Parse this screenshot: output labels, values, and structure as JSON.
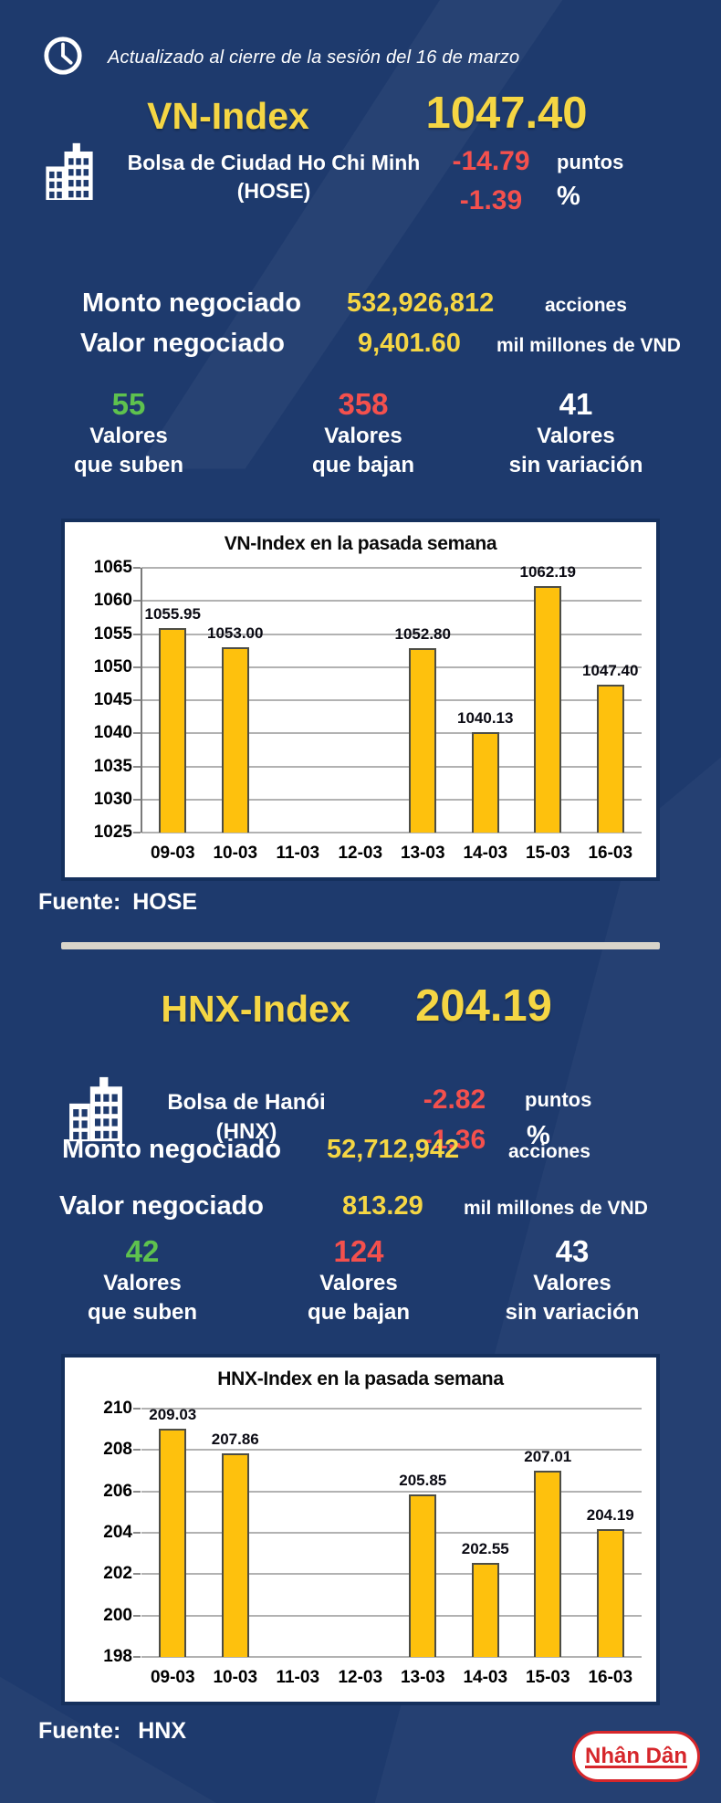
{
  "theme": {
    "background_navy": "#1e3a6d",
    "accent_yellow": "#f5d644",
    "bar_gold": "#fec10d",
    "negative_red": "#f4504d",
    "positive_green": "#5ec24e",
    "white": "#ffffff",
    "divider_gray": "#d8d4ca",
    "brand_red": "#d6262b"
  },
  "header": {
    "updated_text": "Actualizado al cierre de la sesión del 16 de marzo"
  },
  "sections": [
    {
      "index_name": "VN-Index",
      "index_value": "1047.40",
      "exchange_line1": "Bolsa de Ciudad Ho Chi Minh",
      "exchange_line2": "(HOSE)",
      "change_points": "-14.79",
      "change_points_unit": "puntos",
      "change_percent": "-1.39",
      "change_percent_unit": "%",
      "rows": [
        {
          "label": "Monto negociado",
          "value": "532,926,812",
          "unit": "acciones"
        },
        {
          "label": "Valor negociado",
          "value": "9,401.60",
          "unit": "mil millones de VND"
        }
      ],
      "breadth": [
        {
          "count": "55",
          "line1": "Valores",
          "line2": "que suben"
        },
        {
          "count": "358",
          "line1": "Valores",
          "line2": "que bajan"
        },
        {
          "count": "41",
          "line1": "Valores",
          "line2": "sin variación"
        }
      ],
      "source_label": "Fuente:",
      "source_value": "HOSE"
    },
    {
      "index_name": "HNX-Index",
      "index_value": "204.19",
      "exchange_line1": "Bolsa de Hanói",
      "exchange_line2": "(HNX)",
      "change_points": "-2.82",
      "change_points_unit": "puntos",
      "change_percent": "-1.36",
      "change_percent_unit": "%",
      "rows": [
        {
          "label": "Monto negociado",
          "value": "52,712,942",
          "unit": "acciones"
        },
        {
          "label": "Valor negociado",
          "value": "813.29",
          "unit": "mil millones de VND"
        }
      ],
      "breadth": [
        {
          "count": "42",
          "line1": "Valores",
          "line2": "que suben"
        },
        {
          "count": "124",
          "line1": "Valores",
          "line2": "que bajan"
        },
        {
          "count": "43",
          "line1": "Valores",
          "line2": "sin variación"
        }
      ],
      "source_label": "Fuente:",
      "source_value": "HNX"
    }
  ],
  "chart_data": [
    {
      "type": "bar",
      "title": "VN-Index en la pasada semana",
      "categories": [
        "09-03",
        "10-03",
        "11-03",
        "12-03",
        "13-03",
        "14-03",
        "15-03",
        "16-03"
      ],
      "values": [
        1055.95,
        1053.0,
        null,
        null,
        1052.8,
        1040.13,
        1062.19,
        1047.4
      ],
      "ylim": [
        1025,
        1065
      ],
      "ytick_step": 5,
      "grid": true,
      "left_axis": true,
      "legend": "none",
      "bar_color": "#fec10d"
    },
    {
      "type": "bar",
      "title": "HNX-Index en la pasada semana",
      "categories": [
        "09-03",
        "10-03",
        "11-03",
        "12-03",
        "13-03",
        "14-03",
        "15-03",
        "16-03"
      ],
      "values": [
        209.03,
        207.86,
        null,
        null,
        205.85,
        202.55,
        207.01,
        204.19
      ],
      "ylim": [
        198,
        210
      ],
      "ytick_step": 2,
      "grid": true,
      "left_axis": false,
      "legend": "none",
      "bar_color": "#fec10d"
    }
  ],
  "footer": {
    "brand": "Nhân Dân"
  }
}
